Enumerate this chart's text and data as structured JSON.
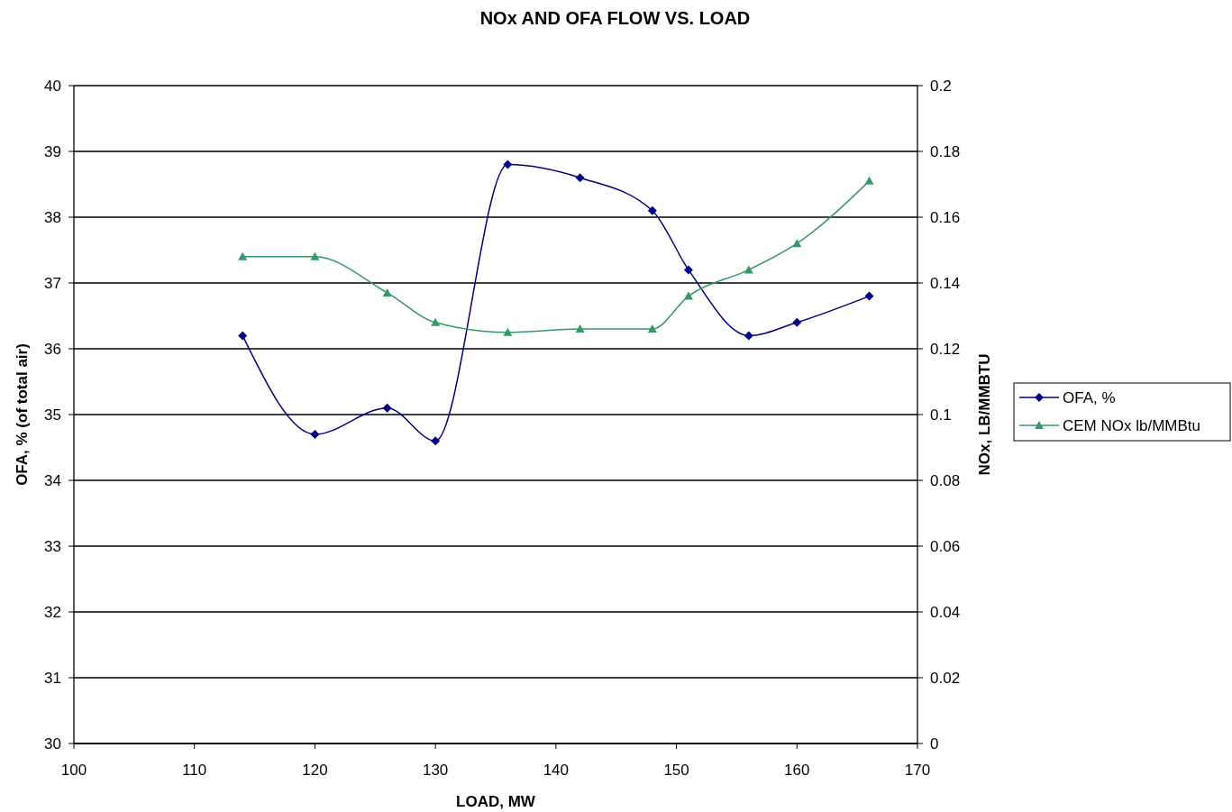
{
  "chart_data": {
    "type": "line",
    "title": "NOx AND OFA FLOW VS. LOAD",
    "xlabel": "LOAD, MW",
    "ylabel": "OFA, % (of total air)",
    "y2label": "NOx, LB/MMBTU",
    "x": [
      114,
      120,
      126,
      130,
      136,
      142,
      148,
      151,
      156,
      160,
      166
    ],
    "series": [
      {
        "name": "OFA, %",
        "color": "#000080",
        "marker": "diamond",
        "values": [
          36.2,
          34.7,
          35.1,
          34.6,
          38.8,
          38.6,
          38.1,
          37.2,
          36.2,
          36.4,
          36.8
        ]
      },
      {
        "name": "CEM NOx lb/MMBtu",
        "color": "#339966",
        "marker": "triangle",
        "axis": "y2",
        "values": [
          0.148,
          0.148,
          0.137,
          0.128,
          0.125,
          0.126,
          0.126,
          0.136,
          0.144,
          0.152,
          0.171
        ]
      }
    ],
    "xlim": [
      100,
      170
    ],
    "xticks": [
      100,
      110,
      120,
      130,
      140,
      150,
      160,
      170
    ],
    "ylim": [
      30,
      40
    ],
    "yticks": [
      30,
      31,
      32,
      33,
      34,
      35,
      36,
      37,
      38,
      39,
      40
    ],
    "y2lim": [
      0,
      0.2
    ],
    "y2ticks": [
      0,
      0.02,
      0.04,
      0.06,
      0.08,
      0.1,
      0.12,
      0.14,
      0.16,
      0.18,
      0.2
    ],
    "grid": "y",
    "legend": "right",
    "line_style": "solid"
  }
}
